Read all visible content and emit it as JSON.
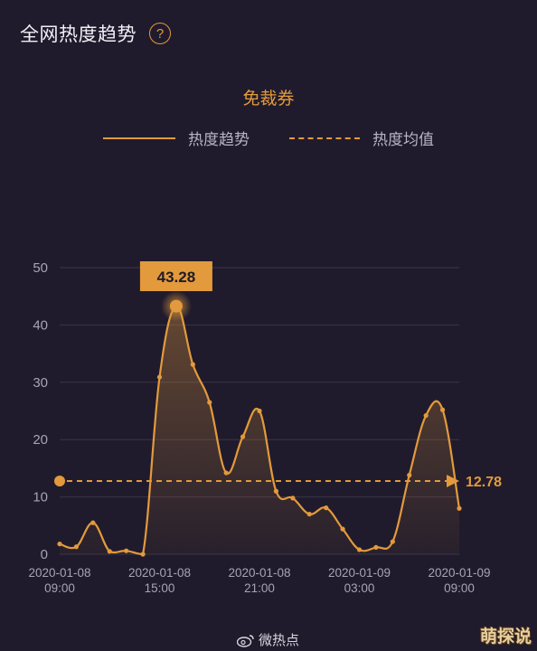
{
  "header": {
    "title": "全网热度趋势",
    "help_icon": "question-circle-icon"
  },
  "footer": {
    "source": "微热点",
    "icon": "weibo-icon"
  },
  "watermark": "萌探说",
  "colors": {
    "accent": "#e39a3c",
    "background": "#201b2c",
    "grid": "#3a3447"
  },
  "chart_data": {
    "type": "area",
    "title": "免裁券",
    "legend": [
      "热度趋势",
      "热度均值"
    ],
    "legend_position": "top-center",
    "grid": true,
    "ylim": [
      0,
      50
    ],
    "yticks": [
      0,
      10,
      20,
      30,
      40,
      50
    ],
    "x_ticks": [
      {
        "date": "2020-01-08",
        "time": "09:00",
        "x": 0
      },
      {
        "date": "2020-01-08",
        "time": "15:00",
        "x": 6
      },
      {
        "date": "2020-01-08",
        "time": "21:00",
        "x": 12
      },
      {
        "date": "2020-01-09",
        "time": "03:00",
        "x": 18
      },
      {
        "date": "2020-01-09",
        "time": "09:00",
        "x": 24
      }
    ],
    "x_unit": "hours",
    "series": [
      {
        "name": "热度趋势",
        "x": [
          0,
          1,
          2,
          3,
          4,
          5,
          6,
          7,
          8,
          9,
          10,
          11,
          12,
          13,
          14,
          15,
          16,
          17,
          18,
          19,
          20,
          21,
          22,
          23,
          24
        ],
        "values": [
          1.8,
          1.3,
          5.5,
          0.5,
          0.6,
          0.0,
          30.9,
          43.28,
          33.1,
          26.5,
          14.2,
          20.5,
          25.0,
          11.0,
          9.8,
          7.0,
          8.1,
          4.4,
          0.8,
          1.2,
          2.2,
          13.8,
          24.2,
          25.2,
          8.0
        ]
      }
    ],
    "average": {
      "name": "热度均值",
      "value": 12.78,
      "label": "12.78"
    },
    "peak": {
      "x": 7,
      "value": 43.28,
      "label": "43.28"
    }
  }
}
